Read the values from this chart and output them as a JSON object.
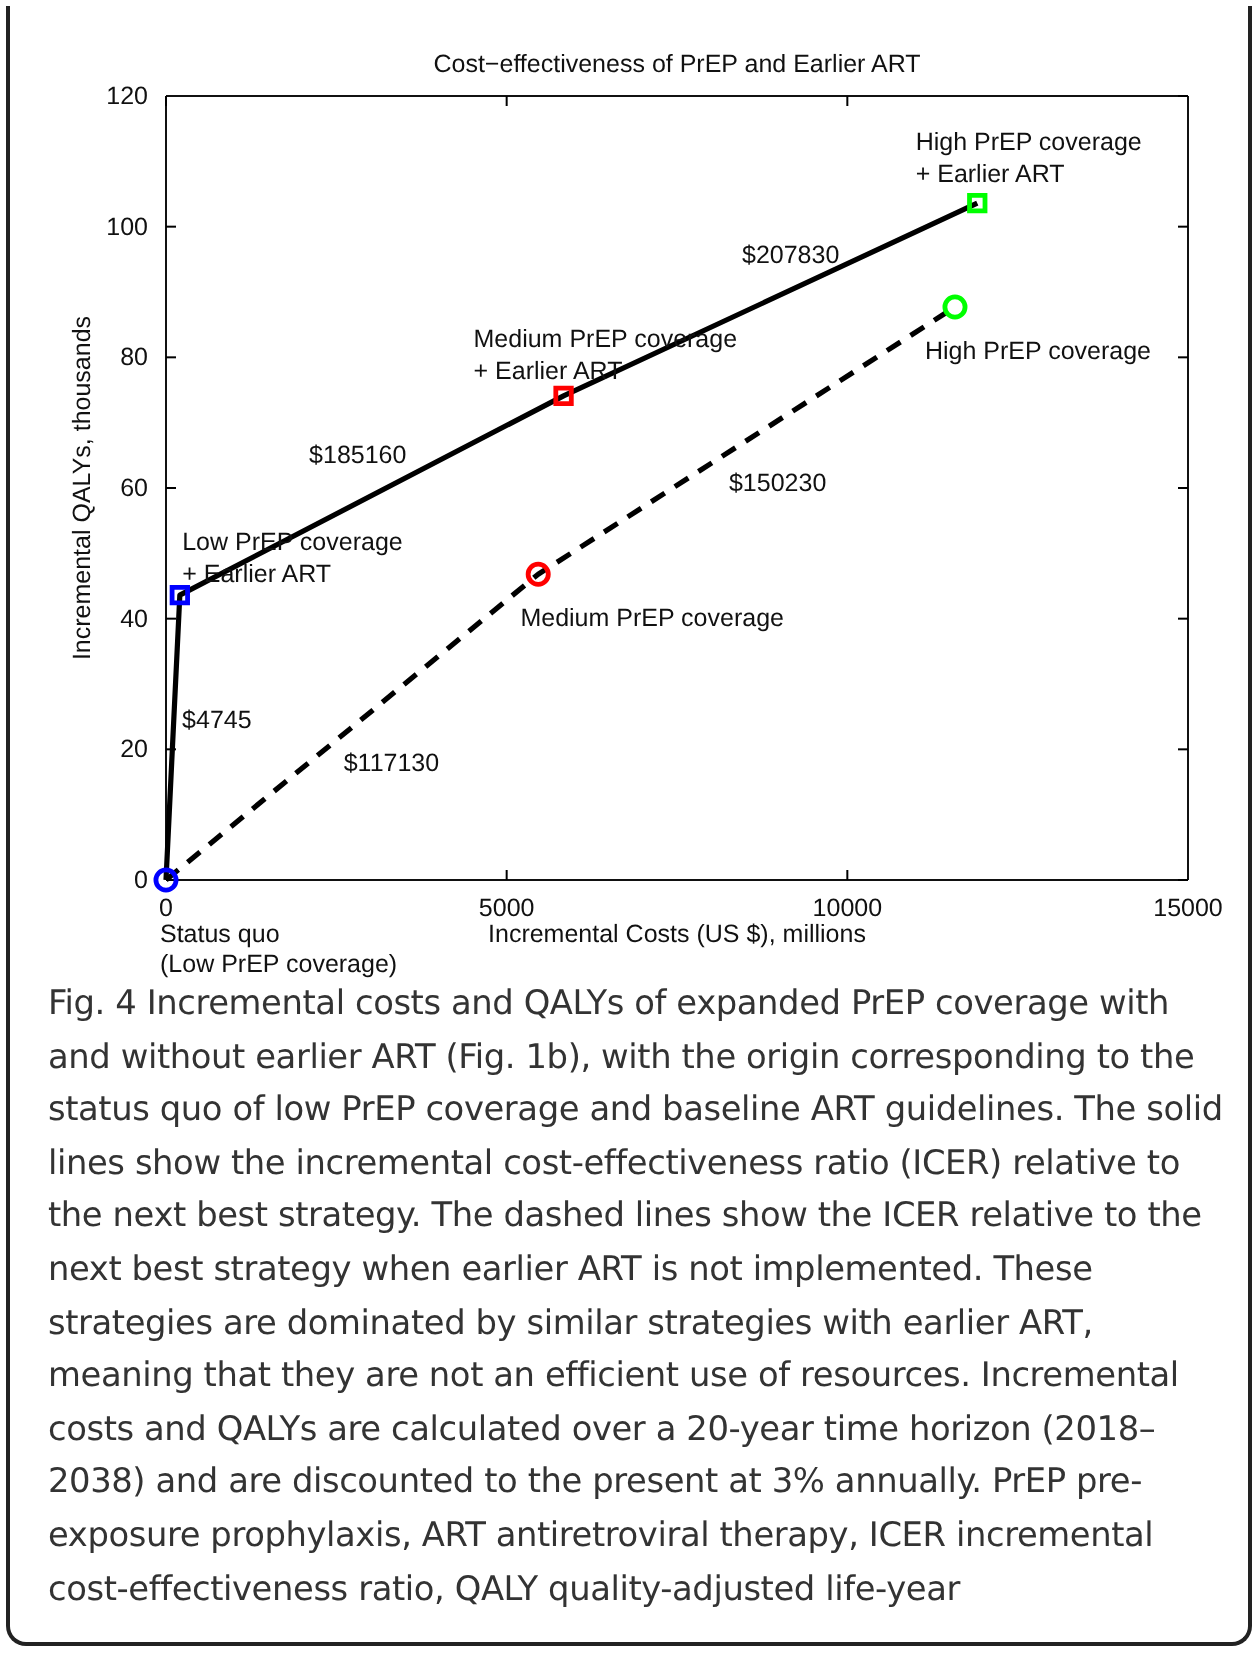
{
  "chart_data": {
    "type": "line",
    "title": "Cost−effectiveness of PrEP and Earlier ART",
    "xlabel": "Incremental Costs (US $), millions",
    "ylabel": "Incremental QALYs, thousands",
    "xlim": [
      0,
      15000
    ],
    "xticks": [
      0,
      5000,
      10000,
      15000
    ],
    "ylim": [
      0,
      120
    ],
    "yticks": [
      0,
      20,
      40,
      60,
      80,
      100,
      120
    ],
    "grid": false,
    "series": [
      {
        "color": "#000000",
        "line_style": "solid",
        "marker": "none",
        "x": [
          0,
          203,
          5835,
          11907
        ],
        "values": [
          0,
          43.6,
          74.1,
          103.6
        ]
      },
      {
        "color": "#000000",
        "line_style": "dashed",
        "marker": "none",
        "x": [
          0,
          5463,
          11580
        ],
        "values": [
          0,
          46.8,
          87.7
        ]
      },
      {
        "type": "scatter",
        "marker": "square",
        "colors": [
          "#0000ff",
          "#ff0000",
          "#00ff00"
        ],
        "x": [
          203,
          5835,
          11907
        ],
        "values": [
          43.6,
          74.1,
          103.6
        ]
      },
      {
        "type": "scatter",
        "marker": "circle",
        "colors": [
          "#0000ff",
          "#ff0000",
          "#00ff00"
        ],
        "x": [
          0,
          5463,
          11580
        ],
        "values": [
          0,
          46.8,
          87.7
        ]
      }
    ],
    "annotations": [
      "Status quo\n(Low PrEP coverage)",
      "Fig. 4 Incremental costs and QALYs of expanded PrEP coverage with and without earlier ART (Fig. 1b), with the origin corresponding to the status quo of low PrEP coverage and baseline ART guidelines. The solid lines show the incremental cost-effectiveness ratio (ICER) relative to the next best strategy. The dashed lines show the ICER relative to the next best strategy when earlier ART is not implemented. These strategies are dominated by similar strategies with earlier ART, meaning that they are not an efficient use of resources. Incremental costs and QALYs are calculated over a 20-year time horizon (2018–2038) and are discounted to the present at 3% annually. PrEP pre-exposure prophylaxis, ART antiretroviral therapy, ICER incremental cost-effectiveness ratio, QALY quality-adjusted life-year",
      {
        "text": "High PrEP coverage\n+ Earlier ART",
        "x": 11907,
        "y": 103.6
      },
      {
        "text": "$207830",
        "x": 8871,
        "y": 88.85
      },
      {
        "text": "Medium PrEP coverage\n+ Earlier ART",
        "x": 5835,
        "y": 74.1
      },
      {
        "text": "High PrEP coverage",
        "x": 11580,
        "y": 87.7
      },
      {
        "text": "$185160",
        "x": 3019,
        "y": 58.85
      },
      {
        "text": "$150230",
        "x": 8521.5,
        "y": 67.25
      },
      {
        "text": "Low PrEP coverage\n+ Earlier ART",
        "x": 203,
        "y": 43.6
      },
      {
        "text": "Medium PrEP coverage",
        "x": 5463,
        "y": 46.8
      },
      {
        "text": "$4745",
        "x": 101.5,
        "y": 21.8
      },
      {
        "text": "$117130",
        "x": 2731.5,
        "y": 23.4
      }
    ]
  }
}
